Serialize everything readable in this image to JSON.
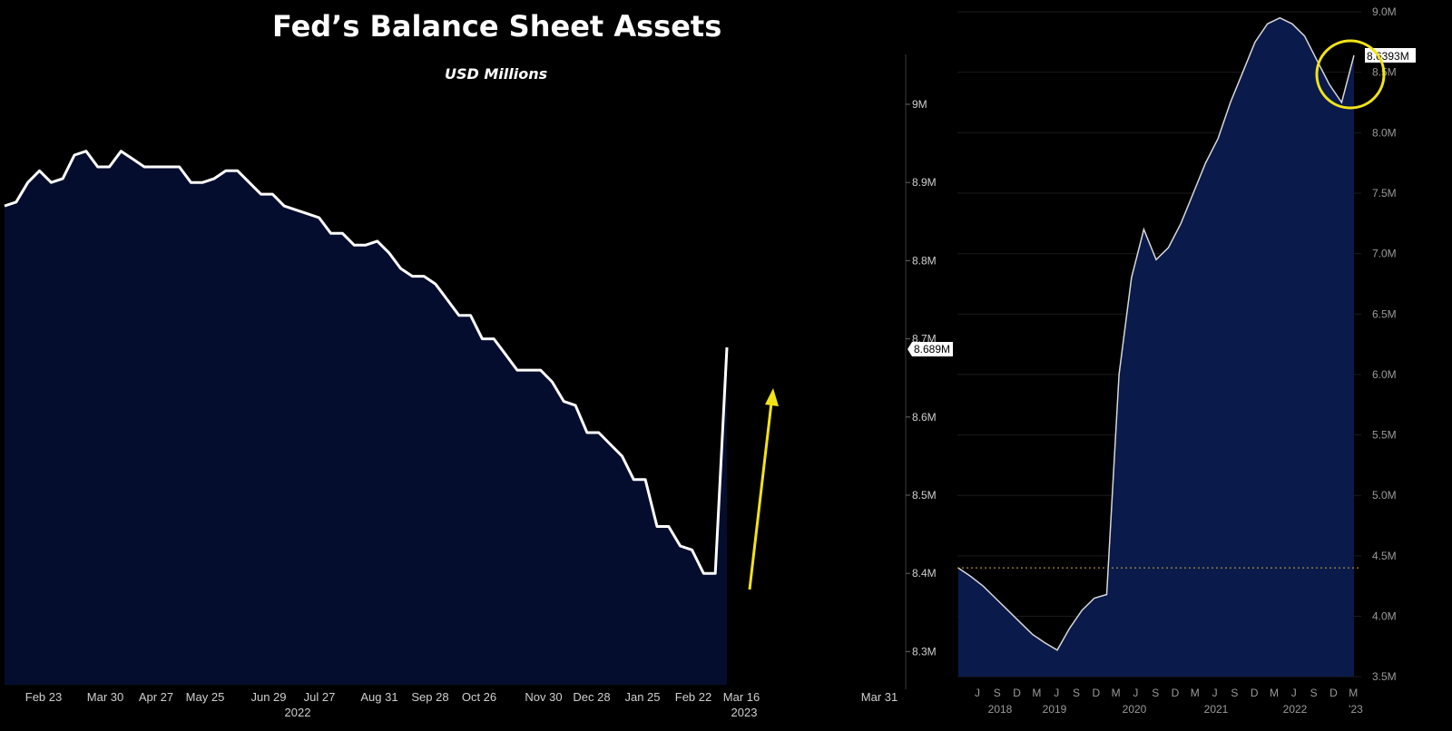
{
  "title": "Fed’s Balance Sheet Assets",
  "subtitle": "USD Millions",
  "colors": {
    "background": "#000000",
    "fill": "#050d2e",
    "line": "#ffffff",
    "arrow": "#f2e318",
    "highlight_circle": "#f2e318",
    "right_line": "#d8d8d8"
  },
  "chart_data": [
    {
      "type": "area",
      "y_unit": "M",
      "ylim": [
        8.25,
        9.07
      ],
      "y_ticks": [
        "9M",
        "8.9M",
        "8.8M",
        "8.7M",
        "8.6M",
        "8.5M",
        "8.4M",
        "8.3M"
      ],
      "x_tick_labels": [
        "Feb 23",
        "Mar 30",
        "Apr 27",
        "May 25",
        "Jun 29",
        "Jul 27",
        "Aug 31",
        "Sep 28",
        "Oct 26",
        "Nov 30",
        "Dec 28",
        "Jan 25",
        "Feb 22",
        "Mar 16",
        "Mar 31"
      ],
      "x_year_labels": [
        "2022",
        "2023"
      ],
      "last_value_label": "8.689M",
      "values": [
        8.87,
        8.875,
        8.9,
        8.915,
        8.9,
        8.905,
        8.935,
        8.94,
        8.92,
        8.92,
        8.94,
        8.93,
        8.92,
        8.92,
        8.92,
        8.92,
        8.9,
        8.9,
        8.905,
        8.915,
        8.915,
        8.9,
        8.885,
        8.885,
        8.87,
        8.865,
        8.86,
        8.855,
        8.835,
        8.835,
        8.82,
        8.82,
        8.825,
        8.81,
        8.79,
        8.78,
        8.78,
        8.77,
        8.75,
        8.73,
        8.73,
        8.7,
        8.7,
        8.68,
        8.66,
        8.66,
        8.66,
        8.645,
        8.62,
        8.615,
        8.58,
        8.58,
        8.565,
        8.55,
        8.52,
        8.52,
        8.46,
        8.46,
        8.435,
        8.43,
        8.4,
        8.4,
        8.689
      ],
      "annotations": [
        "yellow upward arrow after the last point"
      ]
    },
    {
      "type": "area",
      "y_unit": "M",
      "ylim": [
        3.5,
        9.0
      ],
      "y_ticks": [
        "9.0M",
        "8.5M",
        "8.0M",
        "7.5M",
        "7.0M",
        "6.5M",
        "6.0M",
        "5.5M",
        "5.0M",
        "4.5M",
        "4.0M",
        "3.5M"
      ],
      "x_month_labels": [
        "J",
        "S",
        "D",
        "M",
        "J",
        "S",
        "D",
        "M",
        "J",
        "S",
        "D",
        "M",
        "J",
        "S",
        "D",
        "M",
        "J",
        "S",
        "D",
        "M"
      ],
      "x_year_labels": [
        "2018",
        "2019",
        "2020",
        "2021",
        "2022",
        "'23"
      ],
      "last_value_label": "8.6393M",
      "reference_line_value": 4.4,
      "values": [
        4.4,
        4.33,
        4.25,
        4.15,
        4.05,
        3.95,
        3.85,
        3.78,
        3.72,
        3.9,
        4.05,
        4.15,
        4.18,
        6.0,
        6.8,
        7.2,
        6.95,
        7.05,
        7.25,
        7.5,
        7.75,
        7.95,
        8.25,
        8.5,
        8.75,
        8.9,
        8.95,
        8.9,
        8.8,
        8.6,
        8.4,
        8.25,
        8.64
      ],
      "annotations": [
        "yellow circle highlighting the latest reading"
      ]
    }
  ]
}
